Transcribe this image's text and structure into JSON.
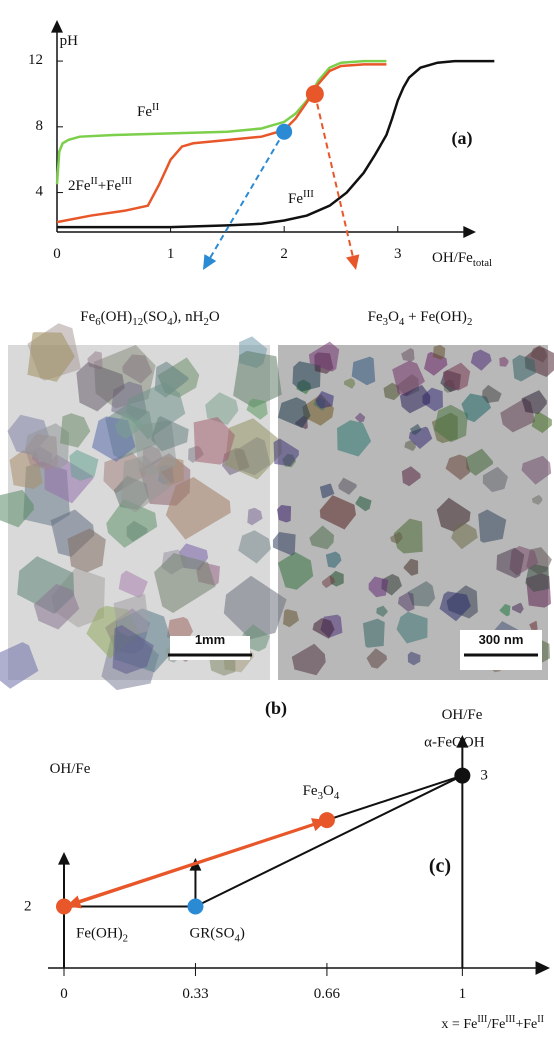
{
  "chart_data": [
    {
      "type": "line",
      "panel_label": "(a)",
      "ylabel": "pH",
      "xlabel": "OH/Fetotal",
      "xlim": [
        0,
        3.9
      ],
      "ylim": [
        1.6,
        14.5
      ],
      "xticks": [
        0,
        1,
        2,
        3
      ],
      "yticks": [
        4,
        8,
        12
      ],
      "series": [
        {
          "name": "FeII",
          "color": "#7ccf4a",
          "x": [
            0,
            0.02,
            0.05,
            0.1,
            0.2,
            0.5,
            1,
            1.5,
            1.8,
            2.0,
            2.1,
            2.2,
            2.3,
            2.4,
            2.5,
            2.7,
            2.9
          ],
          "values": [
            4.5,
            6.5,
            7.0,
            7.2,
            7.4,
            7.5,
            7.6,
            7.7,
            7.9,
            8.3,
            8.8,
            9.6,
            10.8,
            11.6,
            11.9,
            12.0,
            12.0
          ]
        },
        {
          "name": "2FeII+FeIII",
          "color": "#e8572a",
          "x": [
            0,
            0.3,
            0.6,
            0.8,
            0.9,
            1.0,
            1.1,
            1.2,
            1.5,
            1.8,
            2.0,
            2.1,
            2.2,
            2.3,
            2.4,
            2.5,
            2.7,
            2.9
          ],
          "values": [
            2.2,
            2.6,
            2.9,
            3.2,
            4.5,
            6.0,
            6.8,
            7.0,
            7.2,
            7.4,
            7.8,
            8.5,
            9.5,
            10.6,
            11.4,
            11.7,
            11.8,
            11.8
          ]
        },
        {
          "name": "FeIII",
          "color": "#111111",
          "x": [
            0,
            0.5,
            1.0,
            1.5,
            1.8,
            2.0,
            2.2,
            2.4,
            2.55,
            2.7,
            2.8,
            2.9,
            2.95,
            3.0,
            3.05,
            3.1,
            3.2,
            3.35,
            3.5,
            3.85
          ],
          "values": [
            1.9,
            1.9,
            1.9,
            2.0,
            2.1,
            2.3,
            2.6,
            3.2,
            4.0,
            5.2,
            6.3,
            7.5,
            8.5,
            9.6,
            10.4,
            11.0,
            11.6,
            11.9,
            12.0,
            12.0
          ]
        }
      ],
      "markers": [
        {
          "x": 2.0,
          "y": 7.7,
          "color": "#2a8ad4",
          "label": "Fe6(OH)12(SO4), nH2O"
        },
        {
          "x": 2.27,
          "y": 10.0,
          "color": "#e8572a",
          "label": "Fe3O4 + Fe(OH)2"
        }
      ]
    },
    {
      "type": "scatter",
      "panel_label": "(c)",
      "ylabel": "OH/Fe",
      "xlabel": "x = FeIII/FeIII+FeII",
      "xlim": [
        0,
        1.22
      ],
      "ylim": [
        1.53,
        3.31
      ],
      "xticks": [
        0,
        0.33,
        0.66,
        1
      ],
      "yticks": [
        2,
        3
      ],
      "points": {
        "labels": [
          "Fe(OH)2",
          "GR(SO4)",
          "Fe3O4",
          "α-FeOOH"
        ],
        "x": [
          0,
          0.33,
          0.66,
          1
        ],
        "values": [
          2,
          2,
          2.66,
          3
        ],
        "colors": [
          "#e8572a",
          "#2a8ad4",
          "#e8572a",
          "#111111"
        ]
      }
    }
  ],
  "images": {
    "panel_label": "(b)",
    "scale_bars": [
      "1mm",
      "300 nm"
    ]
  }
}
